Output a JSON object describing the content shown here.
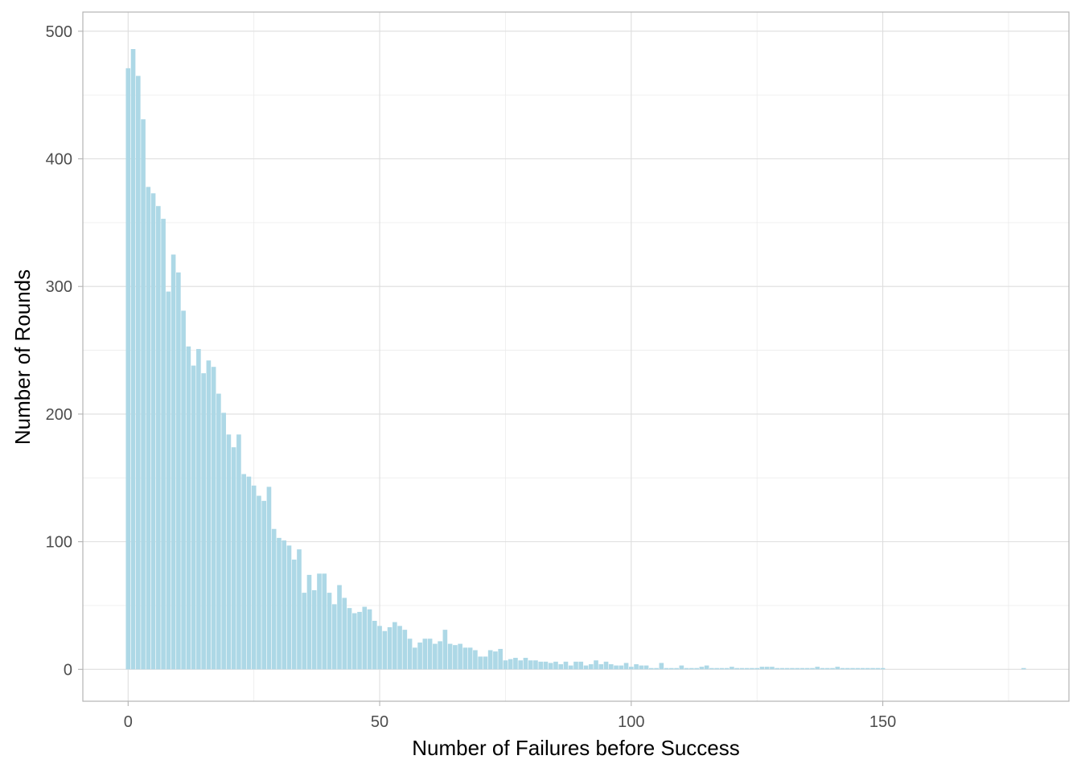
{
  "chart_data": {
    "type": "bar",
    "xlabel": "Number of Failures before Success",
    "ylabel": "Number of Rounds",
    "xlim": [
      -9,
      187
    ],
    "ylim": [
      -25,
      515
    ],
    "x_ticks": [
      0,
      50,
      100,
      150
    ],
    "y_ticks": [
      0,
      100,
      200,
      300,
      400,
      500
    ],
    "x_minor_ticks": [
      25,
      75,
      125,
      175
    ],
    "y_minor_ticks": [
      50,
      150,
      250,
      350,
      450
    ],
    "grid": true,
    "bar_color": "#add8e6",
    "x": [
      0,
      1,
      2,
      3,
      4,
      5,
      6,
      7,
      8,
      9,
      10,
      11,
      12,
      13,
      14,
      15,
      16,
      17,
      18,
      19,
      20,
      21,
      22,
      23,
      24,
      25,
      26,
      27,
      28,
      29,
      30,
      31,
      32,
      33,
      34,
      35,
      36,
      37,
      38,
      39,
      40,
      41,
      42,
      43,
      44,
      45,
      46,
      47,
      48,
      49,
      50,
      51,
      52,
      53,
      54,
      55,
      56,
      57,
      58,
      59,
      60,
      61,
      62,
      63,
      64,
      65,
      66,
      67,
      68,
      69,
      70,
      71,
      72,
      73,
      74,
      75,
      76,
      77,
      78,
      79,
      80,
      81,
      82,
      83,
      84,
      85,
      86,
      87,
      88,
      89,
      90,
      91,
      92,
      93,
      94,
      95,
      96,
      97,
      98,
      99,
      100,
      101,
      102,
      103,
      104,
      105,
      106,
      107,
      108,
      109,
      110,
      111,
      112,
      113,
      114,
      115,
      116,
      117,
      118,
      119,
      120,
      121,
      122,
      123,
      124,
      125,
      126,
      127,
      128,
      129,
      130,
      131,
      132,
      133,
      134,
      135,
      136,
      137,
      138,
      139,
      140,
      141,
      142,
      143,
      144,
      145,
      146,
      147,
      148,
      149,
      150,
      178
    ],
    "values": [
      471,
      486,
      465,
      431,
      378,
      373,
      363,
      353,
      296,
      325,
      311,
      281,
      253,
      238,
      251,
      232,
      242,
      237,
      216,
      201,
      184,
      174,
      184,
      153,
      151,
      144,
      136,
      132,
      143,
      110,
      103,
      101,
      97,
      86,
      94,
      60,
      74,
      62,
      75,
      75,
      60,
      51,
      66,
      56,
      48,
      44,
      45,
      49,
      47,
      38,
      34,
      30,
      33,
      37,
      34,
      31,
      24,
      17,
      21,
      24,
      24,
      20,
      22,
      31,
      20,
      19,
      20,
      17,
      17,
      15,
      10,
      10,
      15,
      14,
      16,
      7,
      8,
      9,
      7,
      9,
      7,
      7,
      6,
      6,
      5,
      6,
      4,
      6,
      3,
      6,
      6,
      3,
      4,
      7,
      4,
      6,
      4,
      3,
      3,
      5,
      2,
      4,
      3,
      3,
      1,
      1,
      5,
      1,
      1,
      1,
      3,
      1,
      1,
      1,
      2,
      3,
      1,
      1,
      1,
      1,
      2,
      1,
      1,
      1,
      1,
      1,
      2,
      2,
      2,
      1,
      1,
      1,
      1,
      1,
      1,
      1,
      1,
      2,
      1,
      1,
      1,
      2,
      1,
      1,
      1,
      1,
      1,
      1,
      1,
      1,
      1,
      1
    ]
  }
}
